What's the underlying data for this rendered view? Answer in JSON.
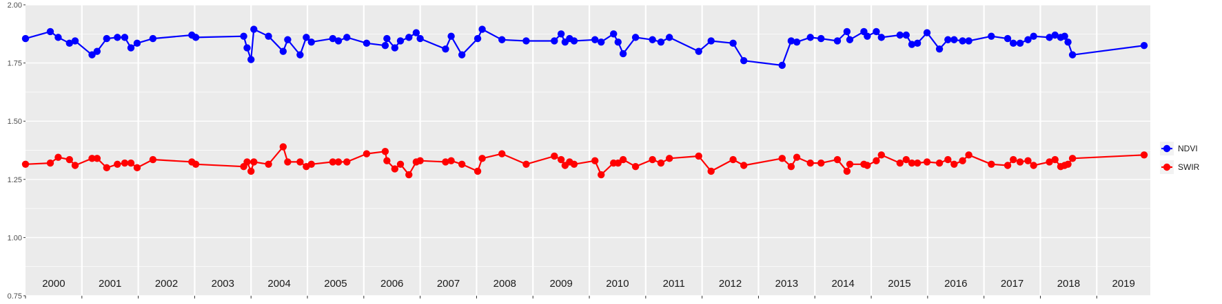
{
  "chart_data": {
    "type": "line",
    "title": "",
    "xlabel": "",
    "ylabel": "",
    "xlim": [
      2000.0,
      2019.95
    ],
    "ylim": [
      0.75,
      2.0
    ],
    "y_ticks": [
      "0.75",
      "1.00",
      "1.25",
      "1.50",
      "1.75",
      "2.00"
    ],
    "year_labels": [
      "2000",
      "2001",
      "2002",
      "2003",
      "2004",
      "2005",
      "2006",
      "2007",
      "2008",
      "2009",
      "2010",
      "2011",
      "2012",
      "2013",
      "2014",
      "2015",
      "2016",
      "2017",
      "2018",
      "2019"
    ],
    "grid": true,
    "legend_position": "right",
    "series": [
      {
        "name": "NDVI",
        "color": "#0000ff",
        "x": [
          2000.0,
          2000.44,
          2000.58,
          2000.78,
          2000.88,
          2001.18,
          2001.27,
          2001.44,
          2001.63,
          2001.76,
          2001.87,
          2001.98,
          2002.26,
          2002.95,
          2003.02,
          2003.87,
          2003.93,
          2004.0,
          2004.05,
          2004.31,
          2004.57,
          2004.65,
          2004.87,
          2004.98,
          2005.07,
          2005.45,
          2005.55,
          2005.7,
          2006.05,
          2006.38,
          2006.41,
          2006.55,
          2006.65,
          2006.8,
          2006.93,
          2007.0,
          2007.45,
          2007.55,
          2007.74,
          2008.02,
          2008.1,
          2008.45,
          2008.88,
          2009.38,
          2009.5,
          2009.57,
          2009.65,
          2009.73,
          2010.1,
          2010.21,
          2010.43,
          2010.51,
          2010.6,
          2010.82,
          2011.12,
          2011.27,
          2011.42,
          2011.94,
          2012.16,
          2012.55,
          2012.74,
          2013.42,
          2013.58,
          2013.68,
          2013.92,
          2014.11,
          2014.4,
          2014.57,
          2014.62,
          2014.87,
          2014.93,
          2015.09,
          2015.18,
          2015.51,
          2015.62,
          2015.72,
          2015.82,
          2015.99,
          2016.21,
          2016.36,
          2016.47,
          2016.62,
          2016.73,
          2017.13,
          2017.42,
          2017.52,
          2017.64,
          2017.78,
          2017.88,
          2018.16,
          2018.26,
          2018.36,
          2018.43,
          2018.49,
          2018.57,
          2019.84
        ],
        "y": [
          1.855,
          1.885,
          1.86,
          1.835,
          1.845,
          1.785,
          1.8,
          1.855,
          1.86,
          1.86,
          1.815,
          1.835,
          1.855,
          1.87,
          1.86,
          1.865,
          1.815,
          1.765,
          1.895,
          1.865,
          1.8,
          1.85,
          1.785,
          1.86,
          1.84,
          1.855,
          1.845,
          1.86,
          1.835,
          1.825,
          1.855,
          1.815,
          1.845,
          1.86,
          1.88,
          1.855,
          1.81,
          1.865,
          1.785,
          1.855,
          1.895,
          1.85,
          1.845,
          1.845,
          1.875,
          1.84,
          1.855,
          1.845,
          1.85,
          1.84,
          1.875,
          1.84,
          1.79,
          1.86,
          1.85,
          1.84,
          1.86,
          1.8,
          1.845,
          1.835,
          1.76,
          1.74,
          1.845,
          1.84,
          1.86,
          1.855,
          1.845,
          1.885,
          1.85,
          1.885,
          1.865,
          1.885,
          1.86,
          1.87,
          1.87,
          1.83,
          1.835,
          1.88,
          1.81,
          1.85,
          1.85,
          1.845,
          1.845,
          1.865,
          1.855,
          1.835,
          1.835,
          1.85,
          1.865,
          1.86,
          1.87,
          1.86,
          1.865,
          1.84,
          1.785,
          1.825
        ]
      },
      {
        "name": "SWIR",
        "color": "#ff0000",
        "x": [
          2000.0,
          2000.44,
          2000.58,
          2000.78,
          2000.88,
          2001.18,
          2001.27,
          2001.44,
          2001.63,
          2001.76,
          2001.87,
          2001.98,
          2002.26,
          2002.95,
          2003.02,
          2003.87,
          2003.93,
          2004.0,
          2004.05,
          2004.31,
          2004.57,
          2004.65,
          2004.87,
          2004.98,
          2005.07,
          2005.45,
          2005.55,
          2005.7,
          2006.05,
          2006.38,
          2006.41,
          2006.55,
          2006.65,
          2006.8,
          2006.93,
          2007.0,
          2007.45,
          2007.55,
          2007.74,
          2008.02,
          2008.1,
          2008.45,
          2008.88,
          2009.38,
          2009.5,
          2009.57,
          2009.65,
          2009.73,
          2010.1,
          2010.21,
          2010.43,
          2010.51,
          2010.6,
          2010.82,
          2011.12,
          2011.27,
          2011.42,
          2011.94,
          2012.16,
          2012.55,
          2012.74,
          2013.42,
          2013.58,
          2013.68,
          2013.92,
          2014.11,
          2014.4,
          2014.57,
          2014.62,
          2014.87,
          2014.93,
          2015.09,
          2015.18,
          2015.51,
          2015.62,
          2015.72,
          2015.82,
          2015.99,
          2016.21,
          2016.36,
          2016.47,
          2016.62,
          2016.73,
          2017.13,
          2017.42,
          2017.52,
          2017.64,
          2017.78,
          2017.88,
          2018.16,
          2018.26,
          2018.36,
          2018.43,
          2018.49,
          2018.57,
          2019.84
        ],
        "y": [
          1.315,
          1.32,
          1.345,
          1.335,
          1.31,
          1.34,
          1.34,
          1.3,
          1.315,
          1.32,
          1.32,
          1.3,
          1.335,
          1.325,
          1.315,
          1.305,
          1.325,
          1.285,
          1.325,
          1.315,
          1.39,
          1.325,
          1.325,
          1.305,
          1.315,
          1.325,
          1.325,
          1.325,
          1.36,
          1.37,
          1.33,
          1.295,
          1.315,
          1.27,
          1.325,
          1.33,
          1.325,
          1.33,
          1.315,
          1.285,
          1.34,
          1.36,
          1.315,
          1.35,
          1.335,
          1.31,
          1.325,
          1.315,
          1.33,
          1.27,
          1.32,
          1.32,
          1.335,
          1.305,
          1.335,
          1.32,
          1.34,
          1.35,
          1.285,
          1.335,
          1.31,
          1.34,
          1.305,
          1.345,
          1.32,
          1.32,
          1.335,
          1.285,
          1.315,
          1.315,
          1.31,
          1.33,
          1.355,
          1.32,
          1.335,
          1.32,
          1.32,
          1.325,
          1.32,
          1.335,
          1.315,
          1.33,
          1.355,
          1.315,
          1.31,
          1.335,
          1.325,
          1.33,
          1.31,
          1.325,
          1.335,
          1.305,
          1.31,
          1.315,
          1.34,
          1.355
        ]
      }
    ]
  }
}
